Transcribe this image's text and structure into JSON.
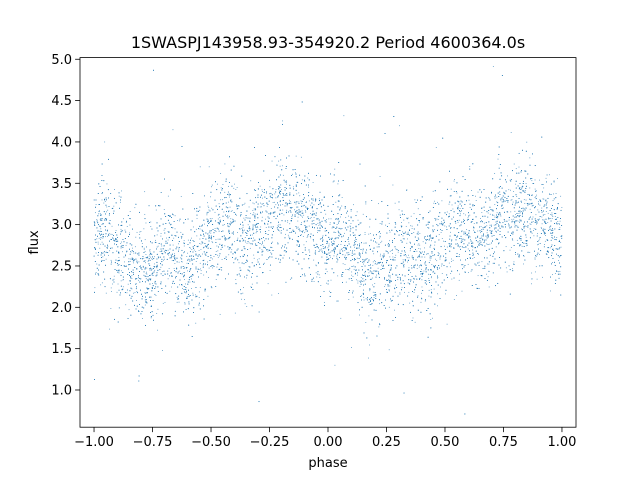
{
  "chart_data": {
    "type": "scatter",
    "title": "1SWASPJ143958.93-354920.2 Period 4600364.0s",
    "xlabel": "phase",
    "ylabel": "flux",
    "xlim": [
      -1.06,
      1.06
    ],
    "ylim": [
      0.55,
      5.02
    ],
    "xticks": [
      -1.0,
      -0.75,
      -0.5,
      -0.25,
      0.0,
      0.25,
      0.5,
      0.75,
      1.0
    ],
    "xtick_labels": [
      "−1.00",
      "−0.75",
      "−0.50",
      "−0.25",
      "0.00",
      "0.25",
      "0.50",
      "0.75",
      "1.00"
    ],
    "yticks": [
      1.0,
      1.5,
      2.0,
      2.5,
      3.0,
      3.5,
      4.0,
      4.5,
      5.0
    ],
    "ytick_labels": [
      "1.0",
      "1.5",
      "2.0",
      "2.5",
      "3.0",
      "3.5",
      "4.0",
      "4.5",
      "5.0"
    ],
    "grid": false,
    "marker_color": "#1f77b4",
    "series": [
      {
        "values_description_note": "",
        "points": [
          [
            -1.0,
            2.8
          ],
          [
            -0.96,
            3.0
          ],
          [
            -0.92,
            2.7
          ],
          [
            -0.88,
            2.6
          ],
          [
            -0.84,
            2.5
          ],
          [
            -0.8,
            2.4
          ],
          [
            -0.76,
            2.5
          ],
          [
            -0.72,
            2.6
          ],
          [
            -0.68,
            2.7
          ],
          [
            -0.64,
            2.6
          ],
          [
            -0.6,
            2.5
          ],
          [
            -0.56,
            2.6
          ],
          [
            -0.52,
            2.8
          ],
          [
            -0.48,
            2.9
          ],
          [
            -0.44,
            3.0
          ],
          [
            -0.4,
            2.9
          ],
          [
            -0.36,
            2.8
          ],
          [
            -0.32,
            2.9
          ],
          [
            -0.28,
            3.0
          ],
          [
            -0.24,
            3.1
          ],
          [
            -0.2,
            3.2
          ],
          [
            -0.16,
            3.1
          ],
          [
            -0.12,
            3.0
          ],
          [
            -0.08,
            3.0
          ],
          [
            -0.04,
            2.9
          ],
          [
            0.0,
            2.8
          ],
          [
            0.04,
            2.9
          ],
          [
            0.08,
            2.7
          ],
          [
            0.12,
            2.6
          ],
          [
            0.16,
            2.5
          ],
          [
            0.2,
            2.4
          ],
          [
            0.24,
            2.5
          ],
          [
            0.28,
            2.6
          ],
          [
            0.32,
            2.7
          ],
          [
            0.36,
            2.6
          ],
          [
            0.4,
            2.5
          ],
          [
            0.44,
            2.6
          ],
          [
            0.48,
            2.8
          ],
          [
            0.52,
            2.9
          ],
          [
            0.56,
            3.0
          ],
          [
            0.6,
            2.9
          ],
          [
            0.64,
            2.8
          ],
          [
            0.68,
            2.9
          ],
          [
            0.72,
            3.0
          ],
          [
            0.76,
            3.1
          ],
          [
            0.8,
            3.2
          ],
          [
            0.84,
            3.1
          ],
          [
            0.88,
            3.0
          ],
          [
            0.92,
            3.0
          ],
          [
            0.96,
            2.9
          ],
          [
            1.0,
            2.8
          ]
        ]
      }
    ]
  }
}
